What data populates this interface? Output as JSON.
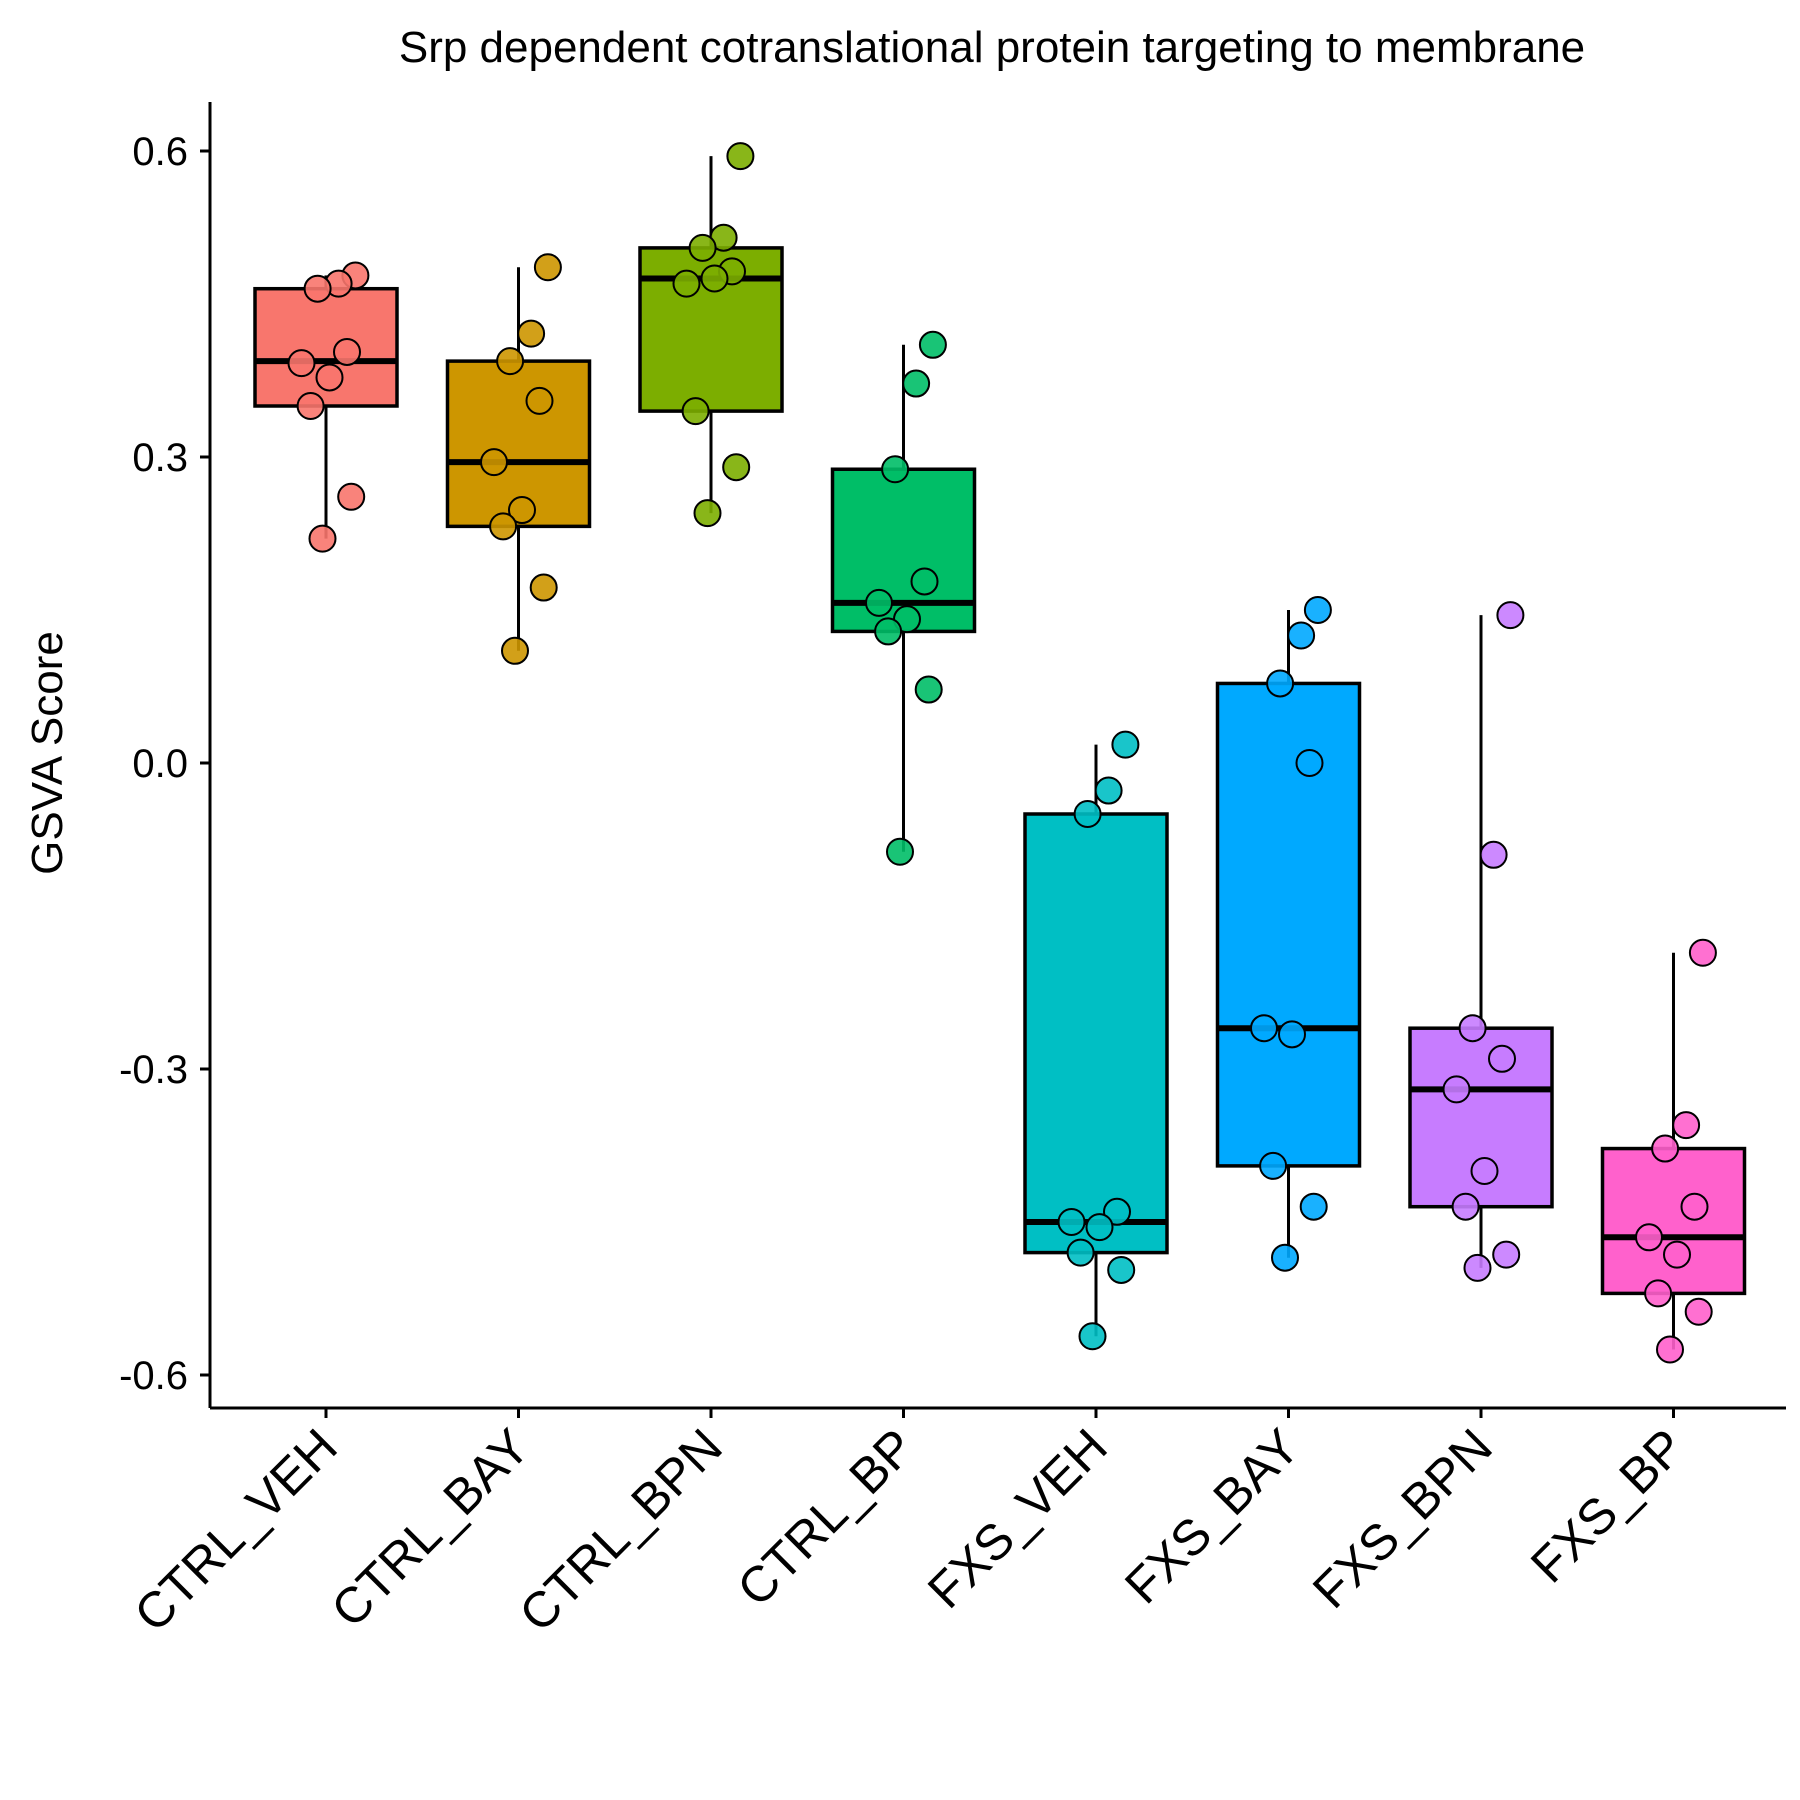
{
  "chart_data": {
    "type": "box",
    "title": "Srp dependent cotranslational protein targeting to membrane",
    "xlabel": "",
    "ylabel": "GSVA Score",
    "ylim": [
      -0.65,
      0.65
    ],
    "yticks": [
      "-0.6",
      "-0.3",
      "0.0",
      "0.3",
      "0.6"
    ],
    "categories": [
      "CTRL_VEH",
      "CTRL_BAY",
      "CTRL_BPN",
      "CTRL_BP",
      "FXS_VEH",
      "FXS_BAY",
      "FXS_BPN",
      "FXS_BP"
    ],
    "colors": [
      "#F8766D",
      "#CD9600",
      "#7CAE00",
      "#00BE67",
      "#00BFC4",
      "#00A9FF",
      "#C77CFF",
      "#FF61CC"
    ],
    "grid": false,
    "legend": "none",
    "series": [
      {
        "category": "CTRL_VEH",
        "q1": 0.35,
        "median": 0.394,
        "q3": 0.465,
        "whisker_low": 0.22,
        "whisker_high": 0.478,
        "points": [
          0.478,
          0.47,
          0.465,
          0.403,
          0.392,
          0.378,
          0.35,
          0.261,
          0.22
        ]
      },
      {
        "category": "CTRL_BAY",
        "q1": 0.232,
        "median": 0.295,
        "q3": 0.394,
        "whisker_low": 0.11,
        "whisker_high": 0.486,
        "points": [
          0.486,
          0.421,
          0.394,
          0.355,
          0.295,
          0.248,
          0.232,
          0.172,
          0.11
        ]
      },
      {
        "category": "CTRL_BPN",
        "q1": 0.345,
        "median": 0.475,
        "q3": 0.505,
        "whisker_low": 0.245,
        "whisker_high": 0.595,
        "points": [
          0.595,
          0.515,
          0.505,
          0.482,
          0.47,
          0.475,
          0.345,
          0.29,
          0.245
        ]
      },
      {
        "category": "CTRL_BP",
        "q1": 0.129,
        "median": 0.157,
        "q3": 0.288,
        "whisker_low": -0.087,
        "whisker_high": 0.41,
        "points": [
          0.41,
          0.372,
          0.288,
          0.178,
          0.157,
          0.141,
          0.129,
          0.072,
          -0.087
        ]
      },
      {
        "category": "FXS_VEH",
        "q1": -0.48,
        "median": -0.45,
        "q3": -0.05,
        "whisker_low": -0.562,
        "whisker_high": 0.018,
        "points": [
          0.018,
          -0.027,
          -0.05,
          -0.44,
          -0.45,
          -0.455,
          -0.48,
          -0.497,
          -0.562
        ]
      },
      {
        "category": "FXS_BAY",
        "q1": -0.395,
        "median": -0.26,
        "q3": 0.078,
        "whisker_low": -0.485,
        "whisker_high": 0.15,
        "points": [
          0.15,
          0.125,
          0.078,
          0.0,
          -0.26,
          -0.266,
          -0.395,
          -0.435,
          -0.485
        ]
      },
      {
        "category": "FXS_BPN",
        "q1": -0.435,
        "median": -0.32,
        "q3": -0.26,
        "whisker_low": -0.495,
        "whisker_high": 0.145,
        "points": [
          0.145,
          -0.09,
          -0.26,
          -0.29,
          -0.32,
          -0.4,
          -0.435,
          -0.482,
          -0.495
        ]
      },
      {
        "category": "FXS_BP",
        "q1": -0.52,
        "median": -0.465,
        "q3": -0.378,
        "whisker_low": -0.575,
        "whisker_high": -0.186,
        "points": [
          -0.186,
          -0.355,
          -0.378,
          -0.435,
          -0.465,
          -0.482,
          -0.52,
          -0.538,
          -0.575
        ]
      }
    ]
  }
}
